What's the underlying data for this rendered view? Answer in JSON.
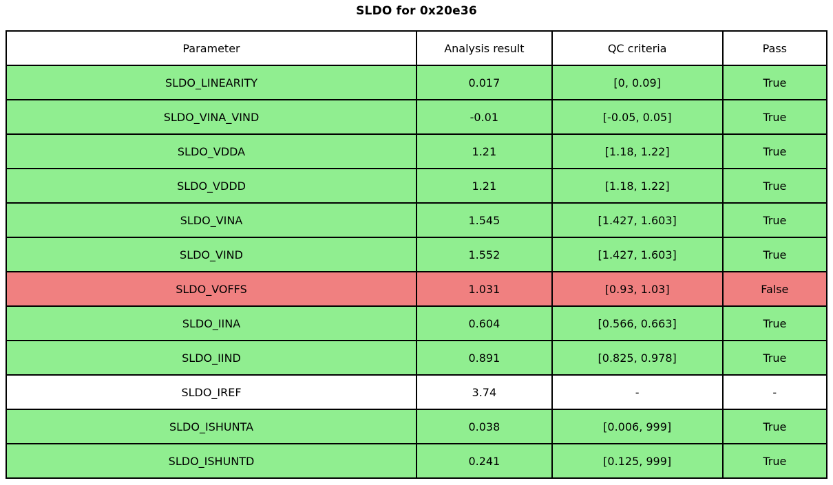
{
  "title": "SLDO for 0x20e36",
  "chart_data": {
    "type": "table",
    "title": "SLDO for 0x20e36",
    "columns": [
      "Parameter",
      "Analysis result",
      "QC criteria",
      "Pass"
    ],
    "rows": [
      {
        "parameter": "SLDO_LINEARITY",
        "result": "0.017",
        "criteria": "[0, 0.09]",
        "pass": "True",
        "status": "pass"
      },
      {
        "parameter": "SLDO_VINA_VIND",
        "result": "-0.01",
        "criteria": "[-0.05, 0.05]",
        "pass": "True",
        "status": "pass"
      },
      {
        "parameter": "SLDO_VDDA",
        "result": "1.21",
        "criteria": "[1.18, 1.22]",
        "pass": "True",
        "status": "pass"
      },
      {
        "parameter": "SLDO_VDDD",
        "result": "1.21",
        "criteria": "[1.18, 1.22]",
        "pass": "True",
        "status": "pass"
      },
      {
        "parameter": "SLDO_VINA",
        "result": "1.545",
        "criteria": "[1.427, 1.603]",
        "pass": "True",
        "status": "pass"
      },
      {
        "parameter": "SLDO_VIND",
        "result": "1.552",
        "criteria": "[1.427, 1.603]",
        "pass": "True",
        "status": "pass"
      },
      {
        "parameter": "SLDO_VOFFS",
        "result": "1.031",
        "criteria": "[0.93, 1.03]",
        "pass": "False",
        "status": "fail"
      },
      {
        "parameter": "SLDO_IINA",
        "result": "0.604",
        "criteria": "[0.566, 0.663]",
        "pass": "True",
        "status": "pass"
      },
      {
        "parameter": "SLDO_IIND",
        "result": "0.891",
        "criteria": "[0.825, 0.978]",
        "pass": "True",
        "status": "pass"
      },
      {
        "parameter": "SLDO_IREF",
        "result": "3.74",
        "criteria": "-",
        "pass": "-",
        "status": "none"
      },
      {
        "parameter": "SLDO_ISHUNTA",
        "result": "0.038",
        "criteria": "[0.006, 999]",
        "pass": "True",
        "status": "pass"
      },
      {
        "parameter": "SLDO_ISHUNTD",
        "result": "0.241",
        "criteria": "[0.125, 999]",
        "pass": "True",
        "status": "pass"
      }
    ],
    "row_status_colors": {
      "pass": "#90ee90",
      "fail": "#f08080",
      "none": "#ffffff"
    },
    "border_color": "#000000",
    "legend": "none",
    "grid": "full-cell-borders"
  }
}
